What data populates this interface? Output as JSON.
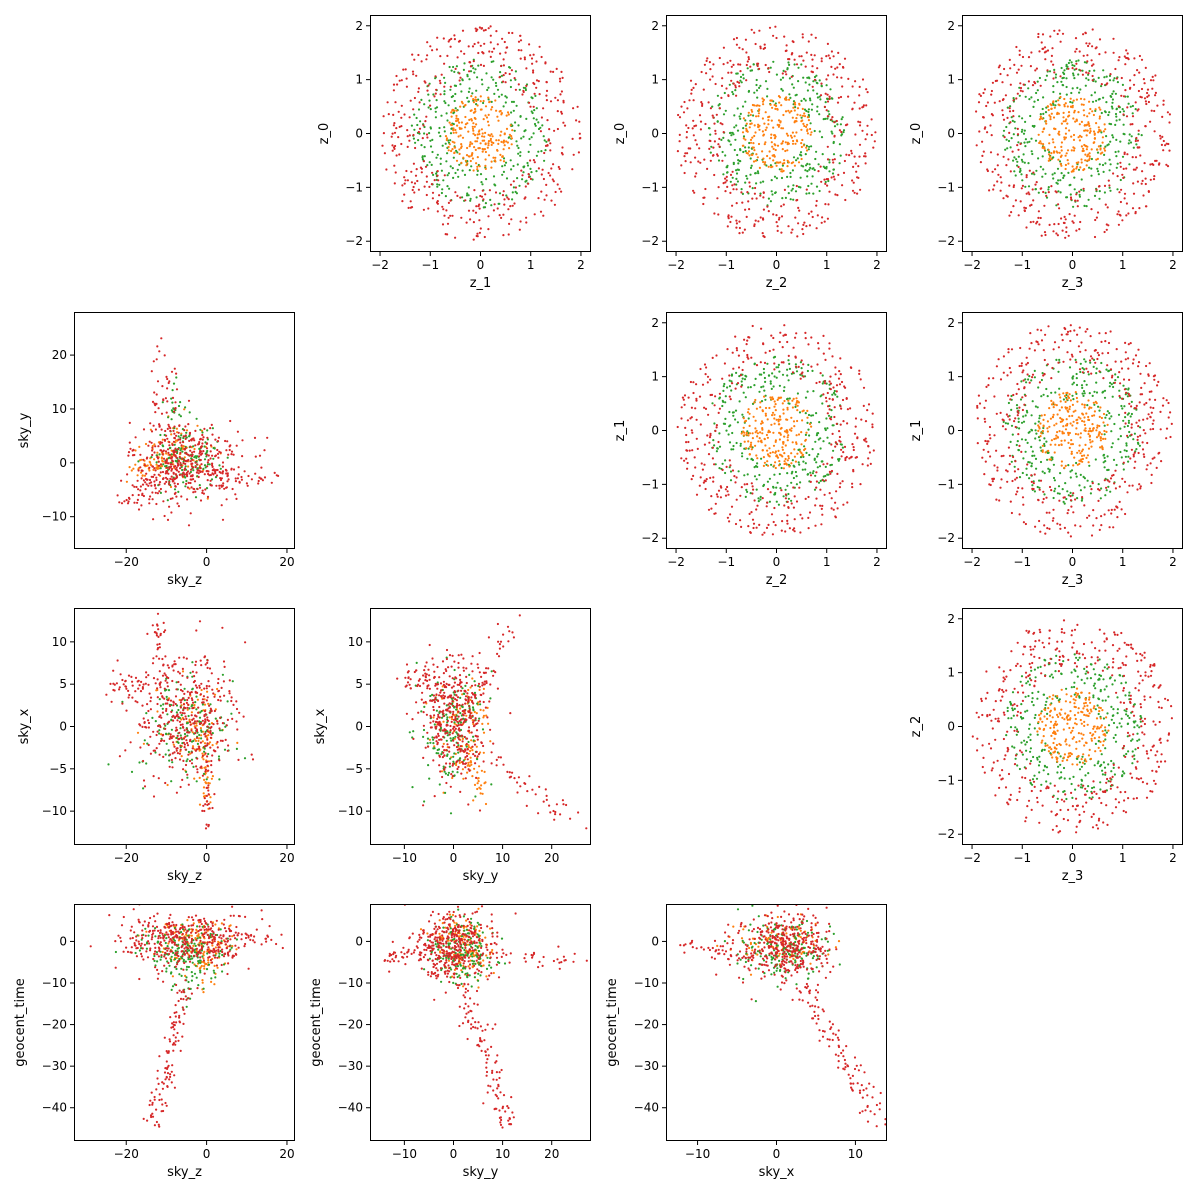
{
  "chart_data": {
    "type": "scatter",
    "layout": "corner",
    "series_colors": [
      "#ff7f0e",
      "#2ca02c",
      "#d62728"
    ],
    "panels": [
      {
        "id": "z0_z1",
        "row": 0,
        "col": 1,
        "kind": "ring",
        "xlabel": "z_1",
        "ylabel": "z_0",
        "xlim": [
          -2.2,
          2.2
        ],
        "ylim": [
          -2.2,
          2.2
        ],
        "xticks": [
          -2,
          -1,
          0,
          1,
          2
        ],
        "yticks": [
          -2,
          -1,
          0,
          1,
          2
        ]
      },
      {
        "id": "z0_z2",
        "row": 0,
        "col": 2,
        "kind": "ring",
        "xlabel": "z_2",
        "ylabel": "z_0",
        "xlim": [
          -2.2,
          2.2
        ],
        "ylim": [
          -2.2,
          2.2
        ],
        "xticks": [
          -2,
          -1,
          0,
          1,
          2
        ],
        "yticks": [
          -2,
          -1,
          0,
          1,
          2
        ]
      },
      {
        "id": "z0_z3",
        "row": 0,
        "col": 3,
        "kind": "ring",
        "xlabel": "z_3",
        "ylabel": "z_0",
        "xlim": [
          -2.2,
          2.2
        ],
        "ylim": [
          -2.2,
          2.2
        ],
        "xticks": [
          -2,
          -1,
          0,
          1,
          2
        ],
        "yticks": [
          -2,
          -1,
          0,
          1,
          2
        ]
      },
      {
        "id": "skyy_skyz",
        "row": 1,
        "col": 0,
        "kind": "sky",
        "xlabel": "sky_z",
        "ylabel": "sky_y",
        "xlim": [
          -33,
          22
        ],
        "ylim": [
          -16,
          28
        ],
        "xticks": [
          -20,
          0,
          20
        ],
        "yticks": [
          -10,
          0,
          10,
          20
        ]
      },
      {
        "id": "z1_z2",
        "row": 1,
        "col": 2,
        "kind": "ring",
        "xlabel": "z_2",
        "ylabel": "z_1",
        "xlim": [
          -2.2,
          2.2
        ],
        "ylim": [
          -2.2,
          2.2
        ],
        "xticks": [
          -2,
          -1,
          0,
          1,
          2
        ],
        "yticks": [
          -2,
          -1,
          0,
          1,
          2
        ]
      },
      {
        "id": "z1_z3",
        "row": 1,
        "col": 3,
        "kind": "ring",
        "xlabel": "z_3",
        "ylabel": "z_1",
        "xlim": [
          -2.2,
          2.2
        ],
        "ylim": [
          -2.2,
          2.2
        ],
        "xticks": [
          -2,
          -1,
          0,
          1,
          2
        ],
        "yticks": [
          -2,
          -1,
          0,
          1,
          2
        ]
      },
      {
        "id": "skyx_skyz",
        "row": 2,
        "col": 0,
        "kind": "sky",
        "xlabel": "sky_z",
        "ylabel": "sky_x",
        "xlim": [
          -33,
          22
        ],
        "ylim": [
          -14,
          14
        ],
        "xticks": [
          -20,
          0,
          20
        ],
        "yticks": [
          -10,
          -5,
          0,
          5,
          10
        ]
      },
      {
        "id": "skyx_skyy",
        "row": 2,
        "col": 1,
        "kind": "sky",
        "xlabel": "sky_y",
        "ylabel": "sky_x",
        "xlim": [
          -17,
          28
        ],
        "ylim": [
          -14,
          14
        ],
        "xticks": [
          -10,
          0,
          10,
          20
        ],
        "yticks": [
          -10,
          -5,
          0,
          5,
          10
        ]
      },
      {
        "id": "z2_z3",
        "row": 2,
        "col": 3,
        "kind": "ring",
        "xlabel": "z_3",
        "ylabel": "z_2",
        "xlim": [
          -2.2,
          2.2
        ],
        "ylim": [
          -2.2,
          2.2
        ],
        "xticks": [
          -2,
          -1,
          0,
          1,
          2
        ],
        "yticks": [
          -2,
          -1,
          0,
          1,
          2
        ]
      },
      {
        "id": "gt_skyz",
        "row": 3,
        "col": 0,
        "kind": "time",
        "xlabel": "sky_z",
        "ylabel": "geocent_time",
        "xlim": [
          -33,
          22
        ],
        "ylim": [
          -48,
          9
        ],
        "xticks": [
          -20,
          0,
          20
        ],
        "yticks": [
          -40,
          -30,
          -20,
          -10,
          0
        ]
      },
      {
        "id": "gt_skyy",
        "row": 3,
        "col": 1,
        "kind": "time",
        "xlabel": "sky_y",
        "ylabel": "geocent_time",
        "xlim": [
          -17,
          28
        ],
        "ylim": [
          -48,
          9
        ],
        "xticks": [
          -10,
          0,
          10,
          20
        ],
        "yticks": [
          -40,
          -30,
          -20,
          -10,
          0
        ]
      },
      {
        "id": "gt_skyx",
        "row": 3,
        "col": 2,
        "kind": "time",
        "xlabel": "sky_x",
        "ylabel": "geocent_time",
        "xlim": [
          -14,
          14
        ],
        "ylim": [
          -48,
          9
        ],
        "xticks": [
          -10,
          0,
          10
        ],
        "yticks": [
          -40,
          -30,
          -20,
          -10,
          0
        ]
      }
    ]
  }
}
